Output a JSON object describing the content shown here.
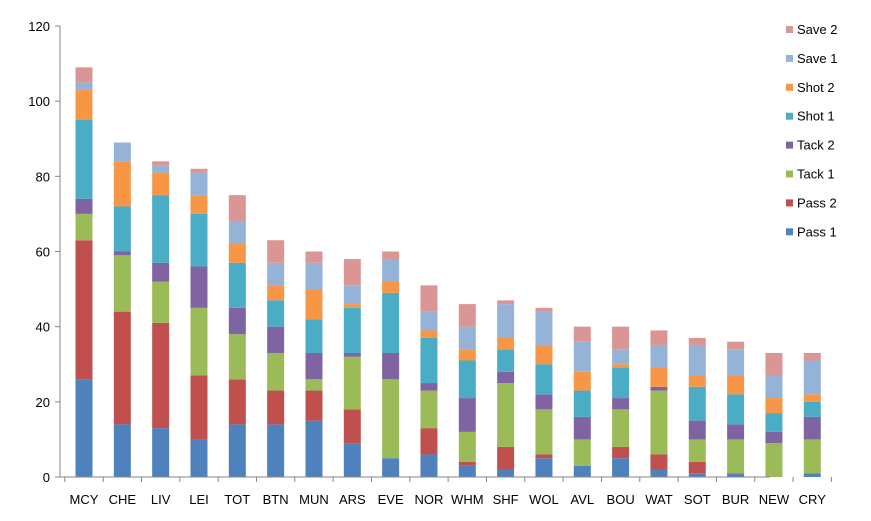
{
  "chart_data": {
    "type": "bar",
    "stacked": true,
    "title": "",
    "xlabel": "",
    "ylabel": "",
    "ylim": [
      0,
      120
    ],
    "yticks": [
      0,
      20,
      40,
      60,
      80,
      100,
      120
    ],
    "grid": false,
    "legend_position": "right",
    "categories": [
      "MCY",
      "CHE",
      "LIV",
      "LEI",
      "TOT",
      "BTN",
      "MUN",
      "ARS",
      "EVE",
      "NOR",
      "WHM",
      "SHF",
      "WOL",
      "AVL",
      "BOU",
      "WAT",
      "SOT",
      "BUR",
      "NEW",
      "CRY"
    ],
    "series": [
      {
        "name": "Pass 1",
        "color": "#4F81BD",
        "values": [
          26,
          14,
          13,
          10,
          14,
          14,
          15,
          9,
          5,
          6,
          3,
          2,
          5,
          3,
          5,
          2,
          1,
          1,
          0,
          1
        ]
      },
      {
        "name": "Pass 2",
        "color": "#C0504D",
        "values": [
          37,
          30,
          28,
          17,
          12,
          9,
          8,
          9,
          0,
          7,
          1,
          6,
          1,
          0,
          3,
          4,
          3,
          0,
          0,
          0
        ]
      },
      {
        "name": "Tack 1",
        "color": "#9BBB59",
        "values": [
          7,
          15,
          11,
          18,
          12,
          10,
          3,
          14,
          21,
          10,
          8,
          17,
          12,
          7,
          10,
          17,
          6,
          9,
          9,
          9
        ]
      },
      {
        "name": "Tack 2",
        "color": "#8064A2",
        "values": [
          4,
          1,
          5,
          11,
          7,
          7,
          7,
          1,
          7,
          2,
          9,
          3,
          4,
          6,
          3,
          1,
          5,
          4,
          3,
          6
        ]
      },
      {
        "name": "Shot 1",
        "color": "#4BACC6",
        "values": [
          21,
          12,
          18,
          14,
          12,
          7,
          9,
          12,
          16,
          12,
          10,
          6,
          8,
          7,
          8,
          0,
          9,
          8,
          5,
          4
        ]
      },
      {
        "name": "Shot 2",
        "color": "#F79646",
        "values": [
          8,
          12,
          6,
          5,
          5,
          4,
          8,
          1,
          3,
          2,
          3,
          3,
          5,
          5,
          1,
          5,
          3,
          5,
          4,
          2
        ]
      },
      {
        "name": "Save 1",
        "color": "#95B3D7",
        "values": [
          2,
          5,
          2,
          6,
          6,
          6,
          7,
          5,
          6,
          5,
          6,
          9,
          9,
          8,
          4,
          6,
          8,
          7,
          6,
          9
        ]
      },
      {
        "name": "Save 2",
        "color": "#D99694",
        "values": [
          4,
          0,
          1,
          1,
          7,
          6,
          3,
          7,
          2,
          7,
          6,
          1,
          1,
          4,
          6,
          4,
          2,
          2,
          6,
          2
        ]
      }
    ]
  }
}
